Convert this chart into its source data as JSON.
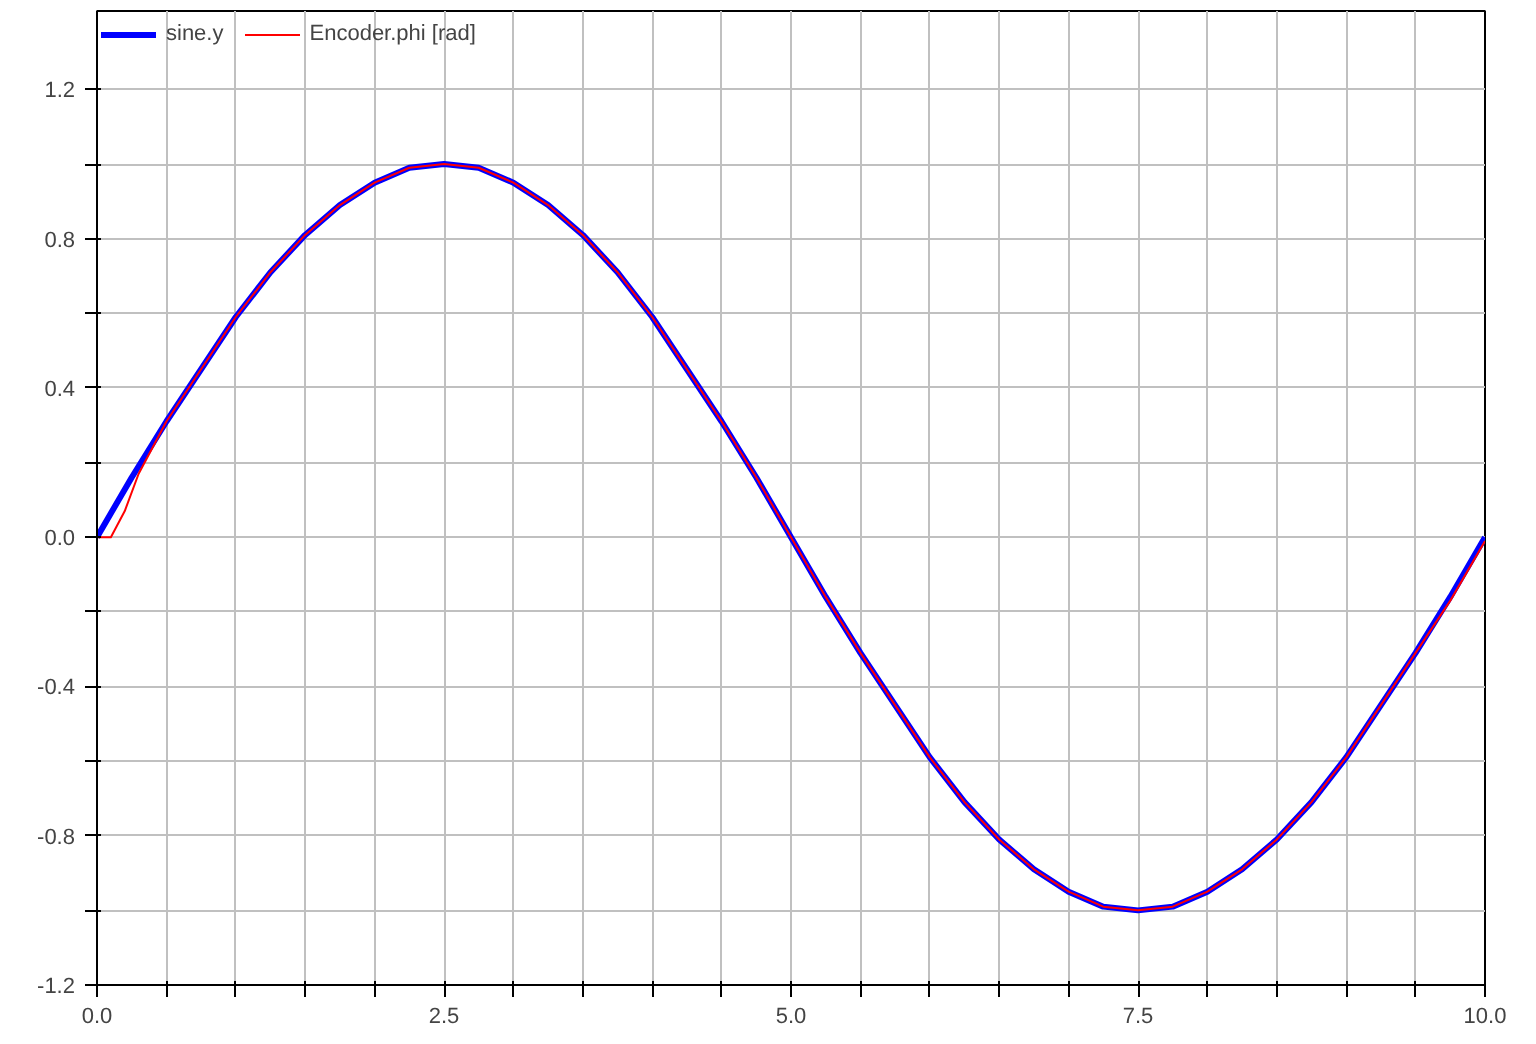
{
  "chart_data": {
    "type": "line",
    "x": [
      0,
      0.25,
      0.5,
      0.75,
      1,
      1.25,
      1.5,
      1.75,
      2,
      2.25,
      2.5,
      2.75,
      3,
      3.25,
      3.5,
      3.75,
      4,
      4.25,
      4.5,
      4.75,
      5,
      5.25,
      5.5,
      5.75,
      6,
      6.25,
      6.5,
      6.75,
      7,
      7.25,
      7.5,
      7.75,
      8,
      8.25,
      8.5,
      8.75,
      9,
      9.25,
      9.5,
      9.75,
      10
    ],
    "series": [
      {
        "name": "sine.y",
        "color": "#0000ff",
        "values": [
          0,
          0.16,
          0.31,
          0.45,
          0.59,
          0.71,
          0.81,
          0.89,
          0.95,
          0.99,
          1,
          0.99,
          0.95,
          0.89,
          0.81,
          0.71,
          0.59,
          0.45,
          0.31,
          0.16,
          0,
          -0.16,
          -0.31,
          -0.45,
          -0.59,
          -0.71,
          -0.81,
          -0.89,
          -0.95,
          -0.99,
          -1,
          -0.99,
          -0.95,
          -0.89,
          -0.81,
          -0.71,
          -0.59,
          -0.45,
          -0.31,
          -0.16,
          0
        ]
      },
      {
        "name": "Encoder.phi [rad]",
        "color": "#ff0000",
        "x": [
          0,
          0.1,
          0.2,
          0.3,
          0.5,
          0.75,
          1,
          1.25,
          1.5,
          1.75,
          2,
          2.25,
          2.5,
          2.75,
          3,
          3.25,
          3.5,
          3.75,
          4,
          4.25,
          4.5,
          4.75,
          5,
          5.25,
          5.5,
          5.75,
          6,
          6.25,
          6.5,
          6.75,
          7,
          7.25,
          7.5,
          7.75,
          8,
          8.25,
          8.5,
          8.75,
          9,
          9.25,
          9.5,
          9.75,
          10
        ],
        "values": [
          0,
          0,
          0.07,
          0.17,
          0.31,
          0.45,
          0.59,
          0.71,
          0.81,
          0.89,
          0.95,
          0.99,
          1,
          0.99,
          0.95,
          0.89,
          0.81,
          0.71,
          0.59,
          0.45,
          0.31,
          0.16,
          0,
          -0.16,
          -0.31,
          -0.45,
          -0.59,
          -0.71,
          -0.81,
          -0.89,
          -0.95,
          -0.99,
          -1,
          -0.99,
          -0.95,
          -0.89,
          -0.81,
          -0.71,
          -0.59,
          -0.45,
          -0.31,
          -0.17,
          -0.01
        ]
      }
    ],
    "xlim": [
      0,
      10
    ],
    "ylim": [
      -1.2,
      1.41
    ],
    "xticks": [
      {
        "value": 0,
        "label": "0.0"
      },
      {
        "value": 0.5,
        "label": null
      },
      {
        "value": 1,
        "label": null
      },
      {
        "value": 1.5,
        "label": null
      },
      {
        "value": 2,
        "label": null
      },
      {
        "value": 2.5,
        "label": "2.5"
      },
      {
        "value": 3,
        "label": null
      },
      {
        "value": 3.5,
        "label": null
      },
      {
        "value": 4,
        "label": null
      },
      {
        "value": 4.5,
        "label": null
      },
      {
        "value": 5,
        "label": "5.0"
      },
      {
        "value": 5.5,
        "label": null
      },
      {
        "value": 6,
        "label": null
      },
      {
        "value": 6.5,
        "label": null
      },
      {
        "value": 7,
        "label": null
      },
      {
        "value": 7.5,
        "label": "7.5"
      },
      {
        "value": 8,
        "label": null
      },
      {
        "value": 8.5,
        "label": null
      },
      {
        "value": 9,
        "label": null
      },
      {
        "value": 9.5,
        "label": null
      },
      {
        "value": 10,
        "label": "10.0"
      }
    ],
    "yticks": [
      -1.2,
      {
        "value": -1.0,
        "label": null
      },
      -0.8,
      {
        "value": -0.6,
        "label": null
      },
      -0.4,
      {
        "value": -0.2,
        "label": null
      },
      {
        "value": 0,
        "label": "0.0"
      },
      {
        "value": 0.2,
        "label": null
      },
      0.4,
      {
        "value": 0.6,
        "label": null
      },
      0.8,
      {
        "value": 1.0,
        "label": null
      },
      1.2
    ],
    "grid": true,
    "legend": "top left",
    "marker": "none",
    "line_style": "solid"
  }
}
